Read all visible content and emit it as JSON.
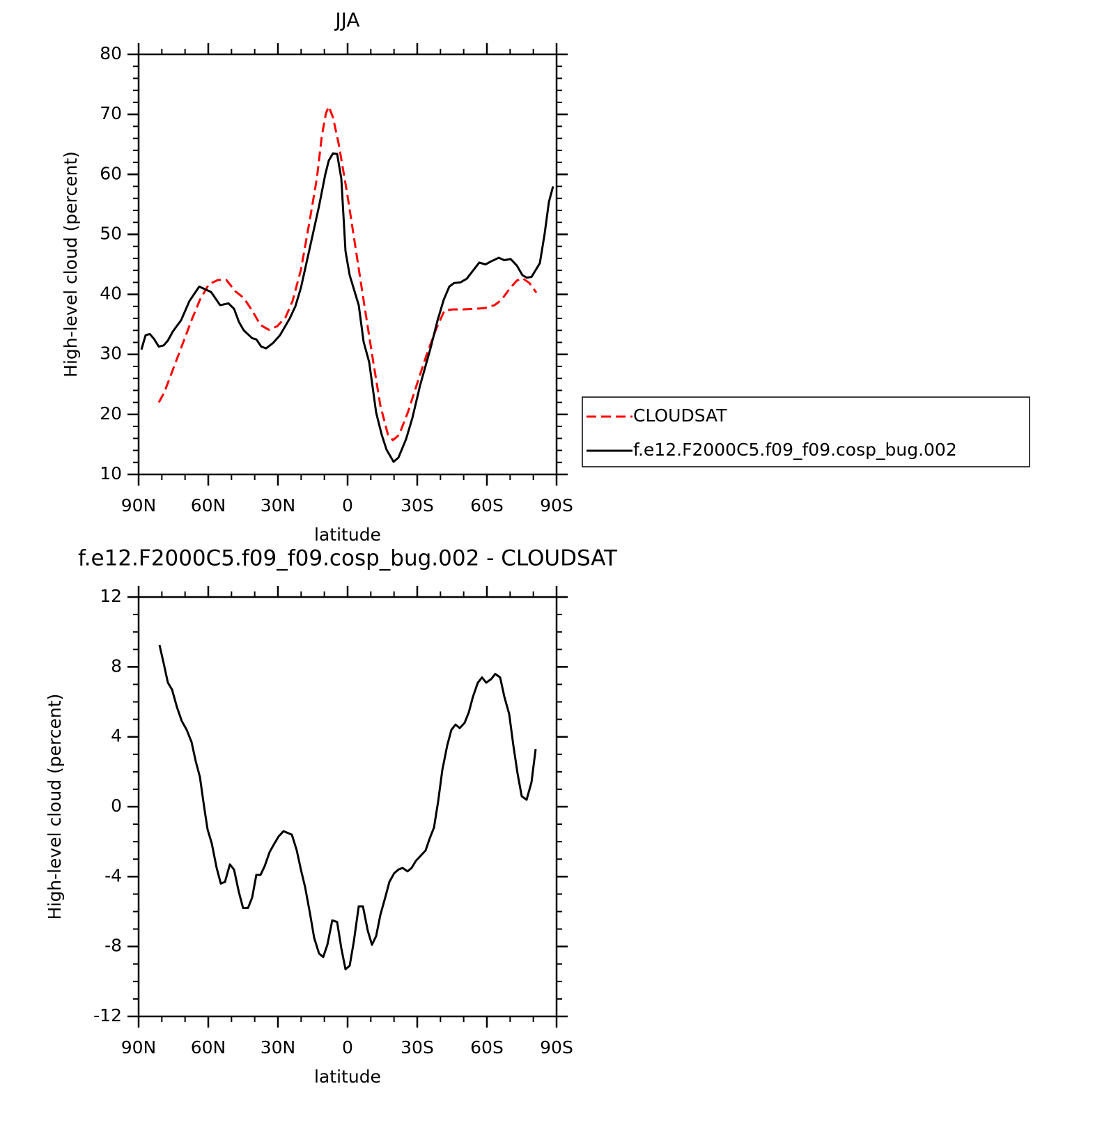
{
  "chart_data": [
    {
      "type": "line",
      "title": "JJA",
      "x_label": "latitude",
      "y_label": "High-level cloud (percent)",
      "xlim": [
        90,
        -90
      ],
      "xticks": [
        {
          "value": 90,
          "label": "90N"
        },
        {
          "value": 60,
          "label": "60N"
        },
        {
          "value": 30,
          "label": "30N"
        },
        0,
        {
          "value": -30,
          "label": "30S"
        },
        {
          "value": -60,
          "label": "60S"
        },
        {
          "value": -90,
          "label": "90S"
        }
      ],
      "xminorticks": [
        80,
        70,
        50,
        40,
        20,
        10,
        -10,
        -20,
        -40,
        -50,
        -70,
        -80
      ],
      "ylim": [
        10,
        80
      ],
      "yticks": [
        10,
        20,
        30,
        40,
        50,
        60,
        70,
        80
      ],
      "yminorticks": [
        12,
        14,
        16,
        18,
        22,
        24,
        26,
        28,
        32,
        34,
        36,
        38,
        42,
        44,
        46,
        48,
        52,
        54,
        56,
        58,
        62,
        64,
        66,
        68,
        72,
        74,
        76,
        78
      ],
      "legend": "right",
      "series": [
        {
          "name": "CLOUDSAT",
          "color": "#ff0000",
          "line_style": "dashed",
          "x": [
            81.3,
            78.9,
            75.3,
            71.1,
            67.2,
            63.6,
            59.7,
            55.8,
            52.2,
            48.3,
            44.7,
            41.1,
            37.5,
            33.9,
            30.3,
            26.7,
            23.7,
            20.1,
            16.5,
            13.2,
            11.1,
            9.3,
            8.1,
            6.3,
            3.9,
            0.3,
            -2.7,
            -6.3,
            -10.5,
            -14.1,
            -17.4,
            -19.5,
            -22.2,
            -26.1,
            -30.0,
            -33.9,
            -38.1,
            -41.7,
            -45.3,
            -49.8,
            -54.3,
            -58.8,
            -63.3,
            -66.3,
            -69.9,
            -72.9,
            -75.3,
            -78.3,
            -81.3
          ],
          "values": [
            22.0,
            23.7,
            27.4,
            31.7,
            35.7,
            39.1,
            41.7,
            42.4,
            42.4,
            40.5,
            39.4,
            37.3,
            34.9,
            34.1,
            34.7,
            36.2,
            38.9,
            44.1,
            51.9,
            59.4,
            66.4,
            70.2,
            71.3,
            69.5,
            65.2,
            57.1,
            49.6,
            40.5,
            30.1,
            21.5,
            16.6,
            15.7,
            16.6,
            20.5,
            25.2,
            29.8,
            34.2,
            37.3,
            37.5,
            37.5,
            37.6,
            37.7,
            38.2,
            39.1,
            41.0,
            42.3,
            42.7,
            41.9,
            40.3
          ]
        },
        {
          "name": "f.e12.F2000C5.f09_f09.cosp_bug.002",
          "color": "#000000",
          "line_style": "solid",
          "x": [
            88.8,
            87.0,
            85.2,
            83.4,
            81.3,
            79.2,
            77.4,
            75.3,
            71.7,
            68.1,
            63.9,
            58.8,
            54.9,
            51.3,
            48.9,
            46.8,
            44.7,
            41.1,
            39.3,
            37.2,
            35.1,
            32.1,
            29.1,
            24.9,
            22.5,
            20.1,
            15.9,
            12.3,
            9.6,
            8.1,
            6.3,
            4.5,
            2.7,
            0.9,
            -0.9,
            -4.8,
            -6.9,
            -9.3,
            -12.3,
            -14.7,
            -16.8,
            -19.8,
            -21.9,
            -25.2,
            -27.9,
            -31.2,
            -35.7,
            -38.7,
            -41.4,
            -43.8,
            -45.9,
            -48.6,
            -51.3,
            -53.7,
            -56.7,
            -59.4,
            -61.8,
            -65.1,
            -67.5,
            -70.2,
            -72.9,
            -75.3,
            -77.1,
            -79.2,
            -82.8,
            -84.9,
            -86.7,
            -88.5
          ],
          "values": [
            30.8,
            33.2,
            33.4,
            32.6,
            31.3,
            31.5,
            32.3,
            33.8,
            35.7,
            38.9,
            41.3,
            40.4,
            38.2,
            38.5,
            37.6,
            35.4,
            34.0,
            32.7,
            32.5,
            31.3,
            31.0,
            31.9,
            33.2,
            36.0,
            38.0,
            41.1,
            48.4,
            54.7,
            60.0,
            62.3,
            63.5,
            63.4,
            59.3,
            47.2,
            43.2,
            38.2,
            32.1,
            28.7,
            20.3,
            16.6,
            14.1,
            12.1,
            12.8,
            15.9,
            19.4,
            24.8,
            31.0,
            35.6,
            39.1,
            41.3,
            41.9,
            42.0,
            42.6,
            43.8,
            45.3,
            45.0,
            45.5,
            46.1,
            45.7,
            45.9,
            44.8,
            43.2,
            42.8,
            42.9,
            45.2,
            50.2,
            55.4,
            58.0
          ]
        }
      ]
    },
    {
      "type": "line",
      "title": "f.e12.F2000C5.f09_f09.cosp_bug.002 - CLOUDSAT",
      "x_label": "latitude",
      "y_label": "High-level cloud (percent)",
      "xlim": [
        90,
        -90
      ],
      "xticks": [
        {
          "value": 90,
          "label": "90N"
        },
        {
          "value": 60,
          "label": "60N"
        },
        {
          "value": 30,
          "label": "30N"
        },
        0,
        {
          "value": -30,
          "label": "30S"
        },
        {
          "value": -60,
          "label": "60S"
        },
        {
          "value": -90,
          "label": "90S"
        }
      ],
      "xminorticks": [
        80,
        70,
        50,
        40,
        20,
        10,
        -10,
        -20,
        -40,
        -50,
        -70,
        -80
      ],
      "ylim": [
        -12,
        12
      ],
      "yticks": [
        -12,
        -8,
        -4,
        0,
        4,
        8,
        12
      ],
      "yminorticks": [
        -11,
        -10,
        -9,
        -7,
        -6,
        -5,
        -3,
        -2,
        -1,
        1,
        2,
        3,
        5,
        6,
        7,
        9,
        10,
        11
      ],
      "color": "#000000",
      "x": [
        81.0,
        79.2,
        77.4,
        75.6,
        73.5,
        71.4,
        69.3,
        67.2,
        65.4,
        63.6,
        61.8,
        60.3,
        58.5,
        56.4,
        54.6,
        52.8,
        50.7,
        48.9,
        46.8,
        45.0,
        42.9,
        41.1,
        39.3,
        37.5,
        35.7,
        33.6,
        31.5,
        29.7,
        27.6,
        25.8,
        24.0,
        21.9,
        20.1,
        18.3,
        16.2,
        14.4,
        12.3,
        10.5,
        8.7,
        6.6,
        4.5,
        2.7,
        0.9,
        -0.9,
        -2.7,
        -4.8,
        -6.6,
        -8.7,
        -10.5,
        -12.3,
        -14.1,
        -16.2,
        -18.0,
        -20.1,
        -21.9,
        -23.7,
        -25.8,
        -27.6,
        -29.4,
        -31.5,
        -33.6,
        -35.4,
        -37.2,
        -39.0,
        -40.8,
        -42.9,
        -44.7,
        -46.5,
        -48.3,
        -50.4,
        -52.2,
        -54.0,
        -56.1,
        -57.9,
        -59.7,
        -61.8,
        -63.6,
        -65.7,
        -67.5,
        -69.6,
        -71.4,
        -73.2,
        -75.0,
        -77.1,
        -79.2,
        -81.0
      ],
      "values": [
        9.25,
        8.2,
        7.1,
        6.7,
        5.7,
        4.9,
        4.4,
        3.7,
        2.6,
        1.7,
        0.0,
        -1.3,
        -2.1,
        -3.5,
        -4.4,
        -4.3,
        -3.3,
        -3.6,
        -4.9,
        -5.8,
        -5.8,
        -5.2,
        -3.9,
        -3.9,
        -3.4,
        -2.6,
        -2.1,
        -1.7,
        -1.4,
        -1.5,
        -1.6,
        -2.5,
        -3.6,
        -4.6,
        -6.1,
        -7.5,
        -8.4,
        -8.6,
        -7.9,
        -6.5,
        -6.6,
        -8.1,
        -9.3,
        -9.1,
        -7.7,
        -5.7,
        -5.7,
        -7.1,
        -7.9,
        -7.4,
        -6.2,
        -5.2,
        -4.3,
        -3.8,
        -3.6,
        -3.5,
        -3.7,
        -3.5,
        -3.1,
        -2.8,
        -2.5,
        -1.8,
        -1.2,
        0.3,
        2.1,
        3.5,
        4.4,
        4.7,
        4.5,
        4.8,
        5.4,
        6.3,
        7.1,
        7.4,
        7.1,
        7.3,
        7.6,
        7.4,
        6.3,
        5.3,
        3.5,
        1.9,
        0.6,
        0.4,
        1.4,
        3.3
      ]
    }
  ]
}
